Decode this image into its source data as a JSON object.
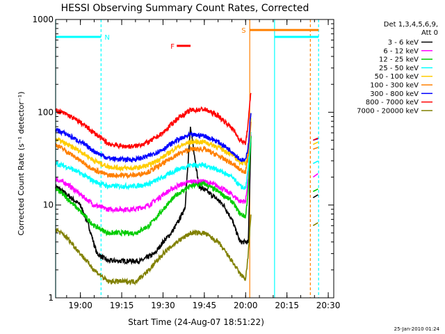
{
  "chart_data": {
    "type": "line",
    "title": "HESSI Observing Summary Count Rates, Corrected",
    "xlabel": "Start Time (24-Aug-07 18:51:22)",
    "ylabel": "Corrected Count Rate (s⁻¹ detector⁻¹)",
    "y_scale": "log",
    "ylim": [
      1,
      1000
    ],
    "yticks": [
      "1",
      "10",
      "100",
      "1000"
    ],
    "xlim_minutes": [
      -9,
      31.5
    ],
    "xticks": [
      {
        "label": "19:00",
        "minute": 0
      },
      {
        "label": "19:15",
        "minute": 15
      },
      {
        "label": "19:30",
        "minute": 30
      },
      {
        "label": "19:45",
        "minute": 45
      },
      {
        "label": "20:00",
        "minute": 60
      },
      {
        "label": "20:15",
        "minute": 75
      },
      {
        "label": "20:30",
        "minute": 90
      }
    ],
    "legend_header": [
      "Det 1,3,4,5,6,9,",
      "Att 0"
    ],
    "legend_placement": "right",
    "series": [
      {
        "name": "3 - 6 keV",
        "color": "#000000",
        "x": [
          -9,
          -5,
          0,
          3,
          6,
          10,
          14,
          18,
          22,
          27,
          30,
          33,
          36,
          38,
          40,
          43,
          46,
          49,
          52,
          55,
          58,
          61,
          62
        ],
        "y": [
          16,
          13,
          10,
          6,
          3,
          2.5,
          2.5,
          2.5,
          2.5,
          3,
          4,
          5,
          7,
          9.5,
          70,
          16,
          14,
          12,
          10,
          7,
          4,
          4,
          70
        ]
      },
      {
        "name": "6 - 12 keV",
        "color": "#ff00ff",
        "x": [
          -9,
          -5,
          0,
          5,
          10,
          15,
          20,
          25,
          30,
          35,
          40,
          45,
          50,
          55,
          58,
          60,
          61,
          62
        ],
        "y": [
          19,
          17,
          13,
          10,
          9,
          9,
          9,
          10,
          13,
          16,
          18,
          18,
          16,
          13,
          11,
          11,
          20,
          60
        ]
      },
      {
        "name": "12 - 25 keV",
        "color": "#00cc00",
        "x": [
          -9,
          -5,
          0,
          5,
          10,
          15,
          20,
          25,
          30,
          35,
          40,
          45,
          50,
          55,
          58,
          60,
          61,
          62
        ],
        "y": [
          15,
          12,
          8.5,
          6,
          5,
          5,
          5,
          6,
          9,
          13,
          16,
          17,
          14,
          11,
          8,
          7.5,
          15,
          60
        ]
      },
      {
        "name": "25 - 50 keV",
        "color": "#00ffff",
        "x": [
          -9,
          -5,
          0,
          5,
          10,
          15,
          20,
          25,
          30,
          35,
          40,
          45,
          50,
          55,
          58,
          60,
          61,
          62
        ],
        "y": [
          28,
          26,
          22,
          18,
          16,
          16,
          16,
          17,
          20,
          24,
          27,
          27,
          24,
          20,
          16,
          15,
          25,
          70
        ]
      },
      {
        "name": "50 - 100 keV",
        "color": "#ffcc00",
        "x": [
          -9,
          -5,
          0,
          5,
          10,
          15,
          20,
          25,
          30,
          35,
          40,
          45,
          50,
          55,
          58,
          60,
          61,
          62
        ],
        "y": [
          52,
          45,
          38,
          30,
          26,
          25,
          25,
          27,
          33,
          42,
          48,
          48,
          42,
          35,
          29,
          28,
          40,
          90
        ]
      },
      {
        "name": "100 - 300 keV",
        "color": "#ff8000",
        "x": [
          -9,
          -5,
          0,
          5,
          10,
          15,
          20,
          25,
          30,
          35,
          40,
          45,
          50,
          55,
          58,
          60,
          61,
          62
        ],
        "y": [
          45,
          38,
          30,
          24,
          21,
          21,
          21,
          23,
          28,
          35,
          40,
          40,
          34,
          28,
          24,
          23,
          35,
          80
        ]
      },
      {
        "name": "300 - 800 keV",
        "color": "#0000ff",
        "x": [
          -9,
          -5,
          0,
          5,
          10,
          15,
          20,
          25,
          30,
          35,
          40,
          45,
          50,
          55,
          58,
          60,
          61,
          62
        ],
        "y": [
          65,
          58,
          48,
          38,
          32,
          31,
          31,
          34,
          40,
          50,
          57,
          56,
          48,
          38,
          31,
          30,
          45,
          110
        ]
      },
      {
        "name": "800 - 7000 keV",
        "color": "#ff0000",
        "x": [
          -9,
          -5,
          0,
          5,
          10,
          15,
          20,
          25,
          30,
          35,
          40,
          45,
          50,
          55,
          58,
          60,
          61,
          62
        ],
        "y": [
          105,
          95,
          78,
          60,
          46,
          43,
          43,
          48,
          60,
          85,
          105,
          108,
          92,
          68,
          50,
          46,
          80,
          180
        ]
      },
      {
        "name": "7000 - 20000 keV",
        "color": "#808000",
        "x": [
          -9,
          -5,
          0,
          5,
          10,
          15,
          20,
          25,
          30,
          35,
          40,
          45,
          50,
          55,
          58,
          60,
          61,
          62
        ],
        "y": [
          5.5,
          4.5,
          3,
          2,
          1.5,
          1.5,
          1.5,
          2,
          3,
          4,
          5,
          5,
          4,
          2.5,
          1.8,
          1.6,
          3,
          9
        ]
      }
    ],
    "late_segment": {
      "minute_start": 84.5,
      "minute_end": 86.5,
      "values": {
        "3 - 6 keV": [
          12,
          13
        ],
        "6 - 12 keV": [
          20,
          22
        ],
        "12 - 25 keV": [
          14,
          15
        ],
        "25 - 50 keV": [
          28,
          30
        ],
        "50 - 100 keV": [
          45,
          48
        ],
        "100 - 300 keV": [
          40,
          42
        ],
        "300 - 800 keV": [
          50,
          52
        ],
        "800 - 7000 keV": [
          50,
          53
        ],
        "7000 - 20000 keV": [
          6,
          6.5
        ]
      }
    },
    "annotations": [
      {
        "label": "N",
        "color": "#00ffff",
        "minute_start": -9,
        "minute_end": 7.5,
        "level": 650
      },
      {
        "label": "S",
        "color": "#ff8000",
        "minute_start": 61.5,
        "minute_end": 86.5,
        "level": 770
      },
      {
        "label": "F",
        "color": "#ff0000",
        "minute_start": 35,
        "minute_end": 40,
        "level": 520
      },
      {
        "label": "",
        "color": "#00ffff",
        "minute_start": 70.5,
        "minute_end": 86.5,
        "level": 650
      }
    ],
    "vertical_markers": [
      {
        "minute": -9,
        "color": "#00ffff",
        "style": "solid"
      },
      {
        "minute": 7.5,
        "color": "#00ffff",
        "style": "dashed"
      },
      {
        "minute": 61.5,
        "color": "#ff8000",
        "style": "solid"
      },
      {
        "minute": 70.5,
        "color": "#00ffff",
        "style": "solid"
      },
      {
        "minute": 83.5,
        "color": "#ff8000",
        "style": "dashed"
      },
      {
        "minute": 86.5,
        "color": "#00ffff",
        "style": "dashed"
      }
    ]
  },
  "footer_timestamp": "25-Jan-2010 01:24"
}
